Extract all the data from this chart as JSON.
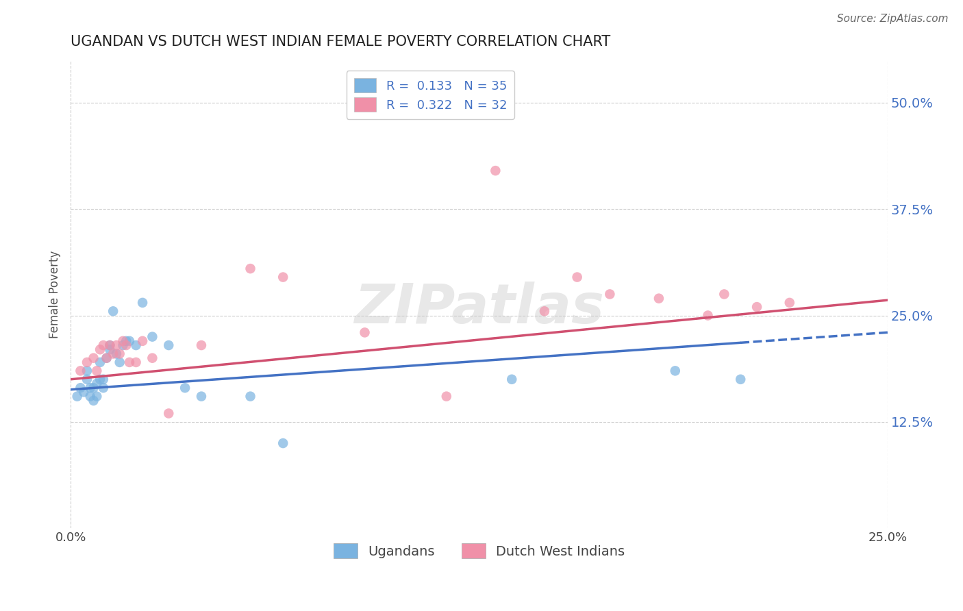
{
  "title": "UGANDAN VS DUTCH WEST INDIAN FEMALE POVERTY CORRELATION CHART",
  "source_text": "Source: ZipAtlas.com",
  "ylabel": "Female Poverty",
  "xlim": [
    0.0,
    0.25
  ],
  "ylim": [
    0.0,
    0.55
  ],
  "xtick_labels": [
    "0.0%",
    "25.0%"
  ],
  "xtick_positions": [
    0.0,
    0.25
  ],
  "ytick_labels": [
    "12.5%",
    "25.0%",
    "37.5%",
    "50.0%"
  ],
  "ytick_positions": [
    0.125,
    0.25,
    0.375,
    0.5
  ],
  "legend_labels_bottom": [
    "Ugandans",
    "Dutch West Indians"
  ],
  "ugandan_color": "#7ab3e0",
  "dutch_color": "#f090a8",
  "trend_ugandan_color": "#4472c4",
  "trend_dutch_color": "#d05070",
  "watermark_text": "ZIPatlas",
  "ugandan_x": [
    0.002,
    0.003,
    0.004,
    0.005,
    0.005,
    0.006,
    0.006,
    0.007,
    0.007,
    0.008,
    0.008,
    0.009,
    0.009,
    0.01,
    0.01,
    0.011,
    0.012,
    0.012,
    0.013,
    0.014,
    0.015,
    0.016,
    0.017,
    0.018,
    0.02,
    0.022,
    0.025,
    0.03,
    0.035,
    0.04,
    0.055,
    0.065,
    0.135,
    0.185,
    0.205
  ],
  "ugandan_y": [
    0.155,
    0.165,
    0.16,
    0.175,
    0.185,
    0.155,
    0.165,
    0.15,
    0.165,
    0.17,
    0.155,
    0.175,
    0.195,
    0.165,
    0.175,
    0.2,
    0.21,
    0.215,
    0.255,
    0.205,
    0.195,
    0.215,
    0.22,
    0.22,
    0.215,
    0.265,
    0.225,
    0.215,
    0.165,
    0.155,
    0.155,
    0.1,
    0.175,
    0.185,
    0.175
  ],
  "dutch_x": [
    0.003,
    0.005,
    0.007,
    0.008,
    0.009,
    0.01,
    0.011,
    0.012,
    0.013,
    0.014,
    0.015,
    0.016,
    0.017,
    0.018,
    0.02,
    0.022,
    0.025,
    0.03,
    0.04,
    0.055,
    0.065,
    0.09,
    0.115,
    0.13,
    0.145,
    0.155,
    0.165,
    0.18,
    0.195,
    0.2,
    0.21,
    0.22
  ],
  "dutch_y": [
    0.185,
    0.195,
    0.2,
    0.185,
    0.21,
    0.215,
    0.2,
    0.215,
    0.205,
    0.215,
    0.205,
    0.22,
    0.215,
    0.195,
    0.195,
    0.22,
    0.2,
    0.135,
    0.215,
    0.305,
    0.295,
    0.23,
    0.155,
    0.42,
    0.255,
    0.295,
    0.275,
    0.27,
    0.25,
    0.275,
    0.26,
    0.265
  ],
  "trend_ug_x0": 0.0,
  "trend_ug_y0": 0.163,
  "trend_ug_x1": 0.205,
  "trend_ug_y1": 0.218,
  "trend_du_x0": 0.0,
  "trend_du_y0": 0.175,
  "trend_du_x1": 0.25,
  "trend_du_y1": 0.268
}
